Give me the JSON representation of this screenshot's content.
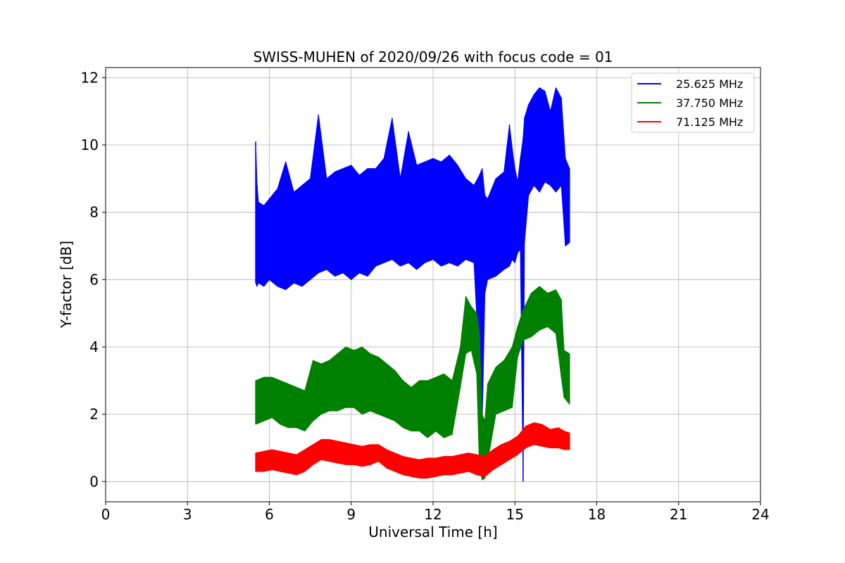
{
  "chart_data": {
    "type": "line",
    "title": "SWISS-MUHEN of 2020/09/26 with focus code = 01",
    "xlabel": "Universal Time [h]",
    "ylabel": "Y-factor [dB]",
    "xlim": [
      0,
      24
    ],
    "ylim": [
      -0.6,
      12.3
    ],
    "x_ticks": [
      0,
      3,
      6,
      9,
      12,
      15,
      18,
      21,
      24
    ],
    "y_ticks": [
      0,
      2,
      4,
      6,
      8,
      10,
      12
    ],
    "grid": true,
    "legend_position": "top-right",
    "series": [
      {
        "name": "25.625 MHz",
        "color": "#0000ff",
        "x": [
          5.5,
          5.55,
          5.6,
          5.8,
          6.0,
          6.3,
          6.6,
          6.9,
          7.2,
          7.5,
          7.8,
          8.1,
          8.4,
          8.7,
          9.0,
          9.3,
          9.6,
          9.9,
          10.2,
          10.5,
          10.8,
          11.1,
          11.4,
          11.7,
          12.0,
          12.3,
          12.6,
          12.9,
          13.2,
          13.5,
          13.7,
          13.8,
          13.9,
          14.0,
          14.3,
          14.6,
          14.8,
          14.9,
          15.0,
          15.1,
          15.2,
          15.3,
          15.35,
          15.5,
          15.7,
          15.9,
          16.1,
          16.3,
          16.5,
          16.7,
          16.85,
          17.0
        ],
        "y_min": [
          5.9,
          5.8,
          5.9,
          5.8,
          6.0,
          5.8,
          5.7,
          5.9,
          5.8,
          6.0,
          6.2,
          6.3,
          6.1,
          6.2,
          6.0,
          6.2,
          6.1,
          6.4,
          6.5,
          6.6,
          6.4,
          6.5,
          6.3,
          6.5,
          6.6,
          6.4,
          6.5,
          6.4,
          6.6,
          6.5,
          3.3,
          1.7,
          5.6,
          6.0,
          6.1,
          6.3,
          6.4,
          6.6,
          6.5,
          6.8,
          6.9,
          0.0,
          7.1,
          8.5,
          8.8,
          8.6,
          8.9,
          8.8,
          8.6,
          8.8,
          7.0,
          7.1
        ],
        "y_max": [
          10.1,
          8.8,
          8.3,
          8.2,
          8.4,
          8.7,
          9.5,
          8.6,
          8.8,
          9.0,
          10.9,
          9.0,
          9.2,
          9.3,
          9.4,
          9.1,
          9.3,
          9.3,
          9.6,
          10.8,
          9.0,
          10.4,
          9.4,
          9.5,
          9.6,
          9.5,
          9.7,
          9.4,
          9.0,
          8.8,
          9.1,
          9.3,
          8.5,
          8.4,
          9.0,
          9.2,
          10.6,
          9.9,
          9.3,
          8.9,
          9.6,
          10.2,
          10.8,
          11.2,
          11.5,
          11.7,
          11.6,
          11.0,
          11.7,
          11.4,
          9.6,
          9.3
        ]
      },
      {
        "name": "37.750 MHz",
        "color": "#008000",
        "x": [
          5.5,
          5.8,
          6.1,
          6.4,
          6.7,
          7.0,
          7.3,
          7.6,
          7.9,
          8.2,
          8.5,
          8.8,
          9.1,
          9.4,
          9.7,
          10.0,
          10.3,
          10.6,
          10.9,
          11.2,
          11.5,
          11.8,
          12.1,
          12.4,
          12.7,
          13.0,
          13.2,
          13.4,
          13.6,
          13.7,
          13.8,
          13.9,
          14.0,
          14.3,
          14.6,
          14.9,
          15.1,
          15.3,
          15.6,
          15.9,
          16.2,
          16.5,
          16.7,
          16.8,
          17.0
        ],
        "y_min": [
          1.7,
          1.8,
          1.9,
          1.7,
          1.6,
          1.6,
          1.5,
          1.8,
          2.0,
          2.1,
          2.1,
          2.2,
          2.2,
          2.0,
          2.1,
          2.0,
          1.9,
          1.8,
          1.6,
          1.5,
          1.5,
          1.3,
          1.5,
          1.3,
          1.4,
          2.8,
          3.8,
          3.9,
          3.2,
          0.4,
          0.05,
          0.1,
          0.6,
          2.0,
          2.1,
          2.2,
          3.7,
          4.2,
          4.3,
          4.5,
          4.6,
          4.4,
          3.1,
          2.5,
          2.3
        ],
        "y_max": [
          3.0,
          3.1,
          3.1,
          3.0,
          2.9,
          2.8,
          2.7,
          3.6,
          3.5,
          3.6,
          3.8,
          4.0,
          3.9,
          4.0,
          3.8,
          3.7,
          3.5,
          3.3,
          3.0,
          2.8,
          3.0,
          3.0,
          3.1,
          3.2,
          3.0,
          4.0,
          5.5,
          5.2,
          5.0,
          4.4,
          2.0,
          1.8,
          2.9,
          3.4,
          3.6,
          4.0,
          4.6,
          5.1,
          5.6,
          5.8,
          5.6,
          5.7,
          5.4,
          3.9,
          3.8
        ]
      },
      {
        "name": "71.125 MHz",
        "color": "#ff0000",
        "x": [
          5.5,
          5.8,
          6.1,
          6.4,
          6.7,
          7.0,
          7.3,
          7.6,
          7.9,
          8.2,
          8.5,
          8.8,
          9.1,
          9.4,
          9.7,
          10.0,
          10.3,
          10.6,
          10.9,
          11.2,
          11.5,
          11.8,
          12.1,
          12.4,
          12.7,
          13.0,
          13.3,
          13.6,
          13.9,
          14.2,
          14.5,
          14.8,
          15.1,
          15.4,
          15.7,
          16.0,
          16.3,
          16.6,
          16.8,
          17.0
        ],
        "y_min": [
          0.3,
          0.3,
          0.35,
          0.3,
          0.25,
          0.2,
          0.3,
          0.5,
          0.65,
          0.6,
          0.55,
          0.5,
          0.5,
          0.45,
          0.5,
          0.6,
          0.4,
          0.3,
          0.2,
          0.15,
          0.1,
          0.1,
          0.15,
          0.2,
          0.2,
          0.25,
          0.3,
          0.2,
          0.15,
          0.35,
          0.5,
          0.65,
          0.8,
          1.0,
          1.1,
          1.05,
          1.0,
          1.0,
          0.95,
          0.95
        ],
        "y_max": [
          0.85,
          0.9,
          0.95,
          0.9,
          0.85,
          0.8,
          0.95,
          1.1,
          1.25,
          1.25,
          1.2,
          1.15,
          1.1,
          1.05,
          1.1,
          1.1,
          0.95,
          0.85,
          0.75,
          0.7,
          0.65,
          0.7,
          0.7,
          0.75,
          0.75,
          0.8,
          0.85,
          0.8,
          0.75,
          0.95,
          1.1,
          1.2,
          1.35,
          1.65,
          1.75,
          1.7,
          1.55,
          1.6,
          1.5,
          1.45
        ]
      }
    ]
  }
}
